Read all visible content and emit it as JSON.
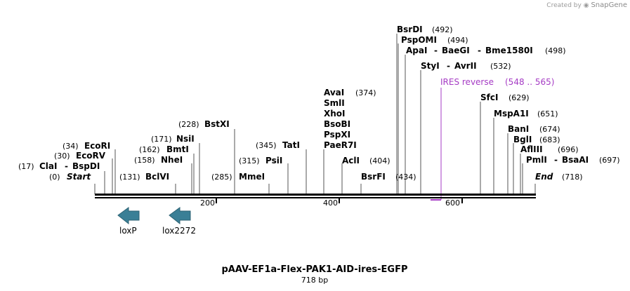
{
  "credit": {
    "prefix": "Created by",
    "brand": "SnapGene"
  },
  "title": "pAAV-EF1a-Flex-PAK1-AID-ires-EGFP",
  "length_label": "718 bp",
  "length_bp": 718,
  "colors": {
    "arrow": "#3a7f96",
    "ires": "#a53bc4",
    "line": "#000000",
    "tick": "#555555"
  },
  "ticks": [
    "200",
    "400",
    "600"
  ],
  "enzyme_rows": [
    {
      "pos": "(0)",
      "names": [
        {
          "t": "Start",
          "italic": true
        }
      ]
    },
    {
      "pos": "(17)",
      "names": [
        {
          "t": "ClaI"
        },
        {
          "t": "-"
        },
        {
          "t": "BspDI"
        }
      ]
    },
    {
      "pos": "(30)",
      "names": [
        {
          "t": "EcoRV"
        }
      ]
    },
    {
      "pos": "(34)",
      "names": [
        {
          "t": "EcoRI"
        }
      ]
    },
    {
      "pos": "(131)",
      "names": [
        {
          "t": "BclVI"
        }
      ]
    },
    {
      "pos": "(158)",
      "names": [
        {
          "t": "NheI"
        }
      ]
    },
    {
      "pos": "(162)",
      "names": [
        {
          "t": "BmtI"
        }
      ]
    },
    {
      "pos": "(171)",
      "names": [
        {
          "t": "NsiI"
        }
      ]
    },
    {
      "pos": "(228)",
      "names": [
        {
          "t": "BstXI"
        }
      ]
    },
    {
      "pos": "(285)",
      "names": [
        {
          "t": "MmeI"
        }
      ]
    },
    {
      "pos": "(315)",
      "names": [
        {
          "t": "PsiI"
        }
      ]
    },
    {
      "pos": "(345)",
      "names": [
        {
          "t": "TatI"
        }
      ]
    },
    {
      "pos": "(374)",
      "names": [
        {
          "t": "AvaI"
        }
      ]
    },
    {
      "pos": "",
      "names": [
        {
          "t": "SmlI"
        }
      ]
    },
    {
      "pos": "",
      "names": [
        {
          "t": "XhoI"
        }
      ]
    },
    {
      "pos": "",
      "names": [
        {
          "t": "BsoBI"
        }
      ]
    },
    {
      "pos": "",
      "names": [
        {
          "t": "PspXI"
        }
      ]
    },
    {
      "pos": "",
      "names": [
        {
          "t": "PaeR7I"
        }
      ]
    },
    {
      "pos": "(404)",
      "names": [
        {
          "t": "AclI"
        }
      ]
    },
    {
      "pos": "(434)",
      "names": [
        {
          "t": "BsrFI"
        }
      ]
    },
    {
      "pos": "(492)",
      "names": [
        {
          "t": "BsrDI"
        }
      ]
    },
    {
      "pos": "(494)",
      "names": [
        {
          "t": "PspOMI"
        }
      ]
    },
    {
      "pos": "(498)",
      "names": [
        {
          "t": "ApaI"
        },
        {
          "t": "-"
        },
        {
          "t": "BaeGI"
        },
        {
          "t": "-"
        },
        {
          "t": "Bme1580I"
        }
      ]
    },
    {
      "pos": "(532)",
      "names": [
        {
          "t": "StyI"
        },
        {
          "t": "-"
        },
        {
          "t": "AvrII"
        }
      ]
    },
    {
      "pos": "(629)",
      "names": [
        {
          "t": "SfcI"
        }
      ]
    },
    {
      "pos": "(651)",
      "names": [
        {
          "t": "MspA1I"
        }
      ]
    },
    {
      "pos": "(674)",
      "names": [
        {
          "t": "BanI"
        }
      ]
    },
    {
      "pos": "(683)",
      "names": [
        {
          "t": "BglI"
        }
      ]
    },
    {
      "pos": "(696)",
      "names": [
        {
          "t": "AflIII"
        }
      ]
    },
    {
      "pos": "(697)",
      "names": [
        {
          "t": "PmlI"
        },
        {
          "t": "-"
        },
        {
          "t": "BsaAI"
        }
      ]
    },
    {
      "pos": "(718)",
      "names": [
        {
          "t": "End",
          "italic": true
        }
      ]
    }
  ],
  "ires": {
    "name": "IRES reverse",
    "range": "(548 .. 565)"
  },
  "features": [
    {
      "name": "loxP",
      "direction": "reverse"
    },
    {
      "name": "lox2272",
      "direction": "reverse"
    }
  ]
}
